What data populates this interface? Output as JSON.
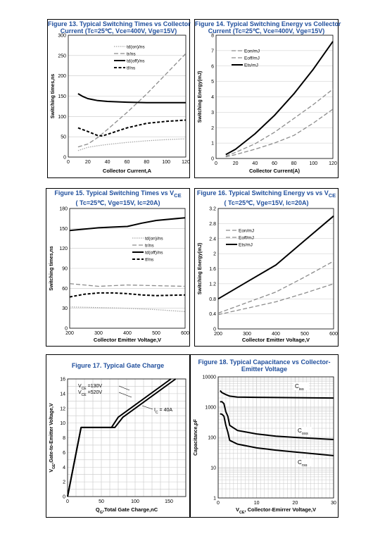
{
  "colors": {
    "title": "#1f4e9c",
    "black": "#000000",
    "gray_dash": "#8c8c8c",
    "gray_dot": "#a6a6a6",
    "grid": "#c8c8c8"
  },
  "chart_data": [
    {
      "id": "fig13",
      "type": "line",
      "title": [
        "Figure 13. Typical Switching Times vs Collector",
        "Current (Tc=25℃, Vce=400V, Vge=15V)"
      ],
      "xlabel": "Collector Current,A",
      "ylabel": "Switching times,ns",
      "xlim": [
        0,
        120
      ],
      "ylim": [
        0,
        300
      ],
      "xticks": [
        0,
        20,
        40,
        60,
        80,
        100,
        120
      ],
      "yticks": [
        0,
        50,
        100,
        150,
        200,
        250,
        300
      ],
      "grid": "horizontal",
      "legend_position": "top-center",
      "series": [
        {
          "name": "td(on)/ns",
          "style": "dot",
          "color": "#a6a6a6",
          "x": [
            10,
            20,
            30,
            40,
            60,
            80,
            100,
            120
          ],
          "y": [
            16,
            24,
            28,
            31,
            36,
            40,
            43,
            45
          ]
        },
        {
          "name": "tr/ns",
          "style": "dash",
          "color": "#8c8c8c",
          "x": [
            10,
            20,
            30,
            40,
            60,
            80,
            100,
            120
          ],
          "y": [
            25,
            32,
            48,
            68,
            110,
            155,
            205,
            255
          ]
        },
        {
          "name": "td(off)/ns",
          "style": "solid",
          "color": "#000000",
          "x": [
            10,
            15,
            20,
            30,
            40,
            60,
            80,
            100,
            120
          ],
          "y": [
            156,
            149,
            144,
            139,
            137,
            135,
            134,
            134,
            134
          ]
        },
        {
          "name": "tf/ns",
          "style": "bolddash",
          "color": "#000000",
          "x": [
            10,
            20,
            30,
            35,
            40,
            60,
            80,
            100,
            120
          ],
          "y": [
            72,
            63,
            53,
            52,
            56,
            72,
            83,
            88,
            91
          ]
        }
      ]
    },
    {
      "id": "fig14",
      "type": "line",
      "title": [
        "Figure 14. Typical Switching Energy vs Collector",
        "Current (Tc=25℃, Vce=400V, Vge=15V)"
      ],
      "xlabel": "Collector Current(A)",
      "ylabel": "Switching Energy(mJ)",
      "xlim": [
        0,
        120
      ],
      "ylim": [
        0,
        8
      ],
      "xticks": [
        0,
        20,
        40,
        60,
        80,
        100,
        120
      ],
      "yticks": [
        0,
        1,
        2,
        3,
        4,
        5,
        6,
        7,
        8
      ],
      "grid": "horizontal",
      "legend_position": "top-center",
      "series": [
        {
          "name": "Eon/mJ",
          "style": "dash",
          "color": "#8c8c8c",
          "x": [
            10,
            20,
            40,
            60,
            80,
            100,
            120
          ],
          "y": [
            0.1,
            0.25,
            0.6,
            1.0,
            1.5,
            2.3,
            3.2
          ]
        },
        {
          "name": "Eoff/mJ",
          "style": "dash",
          "color": "#8c8c8c",
          "x": [
            10,
            20,
            40,
            60,
            80,
            100,
            120
          ],
          "y": [
            0.15,
            0.4,
            0.95,
            1.7,
            2.6,
            3.5,
            4.5
          ]
        },
        {
          "name": "Ets/mJ",
          "style": "solid",
          "color": "#000000",
          "x": [
            10,
            20,
            40,
            60,
            80,
            100,
            120
          ],
          "y": [
            0.25,
            0.6,
            1.6,
            2.8,
            4.2,
            5.8,
            7.6
          ]
        }
      ]
    },
    {
      "id": "fig15",
      "type": "line",
      "title": [
        "Figure 15. Typical Switching Times vs V<sub>CE</sub>",
        "( Tc=25℃, Vge=15V, Ic=20A)"
      ],
      "xlabel": "Collector Emitter Voltage,V",
      "ylabel": "Switching times,ns",
      "xlim": [
        200,
        600
      ],
      "ylim": [
        0,
        180
      ],
      "xticks": [
        200,
        300,
        400,
        500,
        600
      ],
      "yticks": [
        0,
        30,
        60,
        90,
        120,
        150,
        180
      ],
      "grid": "horizontal",
      "legend_position": "center-right",
      "series": [
        {
          "name": "td(on)/ns",
          "style": "dot",
          "color": "#a6a6a6",
          "x": [
            200,
            300,
            400,
            500,
            600
          ],
          "y": [
            32,
            31,
            30,
            28,
            25
          ]
        },
        {
          "name": "tr/ns",
          "style": "dash",
          "color": "#8c8c8c",
          "x": [
            200,
            300,
            400,
            500,
            600
          ],
          "y": [
            67,
            63,
            65,
            64,
            63
          ]
        },
        {
          "name": "td(off)/ns",
          "style": "solid",
          "color": "#000000",
          "x": [
            200,
            300,
            350,
            400,
            450,
            500,
            600
          ],
          "y": [
            147,
            151,
            152,
            153,
            158,
            162,
            166
          ]
        },
        {
          "name": "tf/ns",
          "style": "bolddash",
          "color": "#000000",
          "x": [
            200,
            250,
            300,
            350,
            400,
            450,
            500,
            600
          ],
          "y": [
            47,
            51,
            53,
            53,
            52,
            50,
            49,
            50
          ]
        }
      ]
    },
    {
      "id": "fig16",
      "type": "line",
      "title": [
        "Figure 16. Typical Switching Energy vs vs V<sub>CE</sub>",
        "( Tc=25℃, Vge=15V, Ic=20A)"
      ],
      "xlabel": "Collector Emitter Voltage,V",
      "ylabel": "Switching Energy(mJ)",
      "xlim": [
        200,
        600
      ],
      "ylim": [
        0,
        3.2
      ],
      "xticks": [
        200,
        300,
        400,
        500,
        600
      ],
      "yticks": [
        0,
        0.4,
        0.8,
        1.2,
        1.6,
        2,
        2.4,
        2.8,
        3.2
      ],
      "grid": "horizontal",
      "legend_position": "center-left",
      "series": [
        {
          "name": "Eon/mJ",
          "style": "dash",
          "color": "#8c8c8c",
          "x": [
            200,
            300,
            400,
            500,
            600
          ],
          "y": [
            0.38,
            0.55,
            0.72,
            0.95,
            1.2
          ]
        },
        {
          "name": "Eoff/mJ",
          "style": "dash",
          "color": "#8c8c8c",
          "x": [
            200,
            300,
            400,
            500,
            600
          ],
          "y": [
            0.42,
            0.7,
            0.98,
            1.38,
            1.8
          ]
        },
        {
          "name": "Ets/mJ",
          "style": "solid",
          "color": "#000000",
          "x": [
            200,
            300,
            400,
            500,
            600
          ],
          "y": [
            0.8,
            1.25,
            1.7,
            2.35,
            3.0
          ]
        }
      ]
    },
    {
      "id": "fig17",
      "type": "line",
      "title": [
        "Figure 17. Typical Gate Charge"
      ],
      "xlabel": "Q<sub>G</sub>,Total Gate Charge,nC",
      "ylabel": "V<sub>GE</sub>,Gate-to-Emitter Voltage,V",
      "xlim": [
        0,
        175
      ],
      "ylim": [
        0,
        16
      ],
      "xticks": [
        0,
        50,
        100,
        150
      ],
      "yticks": [
        0,
        2,
        4,
        6,
        8,
        10,
        12,
        14,
        16
      ],
      "grid": "both",
      "annotations": [
        "V<sub>CE</sub> =130V",
        "V<sub>CE</sub> =520V",
        "I<sub>C</sub> = 40A"
      ],
      "series": [
        {
          "name": "V<sub>CE</sub> =130V",
          "style": "solid",
          "color": "#000000",
          "x": [
            0,
            20,
            25,
            65,
            75,
            153
          ],
          "y": [
            0,
            9.4,
            9.4,
            9.4,
            10.8,
            16
          ]
        },
        {
          "name": "V<sub>CE</sub> =520V",
          "style": "solid",
          "color": "#000000",
          "x": [
            0,
            20,
            25,
            70,
            82,
            160
          ],
          "y": [
            0,
            9.4,
            9.4,
            9.4,
            10.8,
            16
          ]
        }
      ]
    },
    {
      "id": "fig18",
      "type": "line",
      "title": [
        "Figure 18. Typical Capacitance vs Collector-",
        "Emitter Voltage"
      ],
      "xlabel": "V<sub>CE</sub>, Collector-Emirrer Voltage,V",
      "ylabel": "Capacitance,pF",
      "xlim": [
        0,
        30
      ],
      "ylim": [
        1,
        10000
      ],
      "yscale": "log",
      "xticks": [
        0,
        10,
        20,
        30
      ],
      "yticks": [
        1,
        10,
        100,
        1000,
        10000
      ],
      "grid": "both",
      "series": [
        {
          "name": "C<sub>iss</sub>",
          "style": "solid",
          "color": "#000000",
          "x": [
            0.5,
            1,
            2,
            3,
            5,
            10,
            20,
            30
          ],
          "y": [
            3500,
            3000,
            2600,
            2300,
            2150,
            2100,
            2050,
            2000
          ]
        },
        {
          "name": "C<sub>oss</sub>",
          "style": "solid",
          "color": "#000000",
          "x": [
            0.5,
            1,
            1.5,
            2,
            2.5,
            3,
            5,
            10,
            15,
            20,
            30
          ],
          "y": [
            1500,
            1500,
            1300,
            700,
            500,
            250,
            170,
            130,
            110,
            100,
            85
          ]
        },
        {
          "name": "C<sub>rss</sub>",
          "style": "solid",
          "color": "#000000",
          "x": [
            0.5,
            1,
            1.5,
            2,
            2.5,
            3,
            5,
            10,
            15,
            20,
            30
          ],
          "y": [
            600,
            580,
            500,
            250,
            150,
            80,
            60,
            45,
            38,
            33,
            25
          ]
        }
      ]
    }
  ]
}
